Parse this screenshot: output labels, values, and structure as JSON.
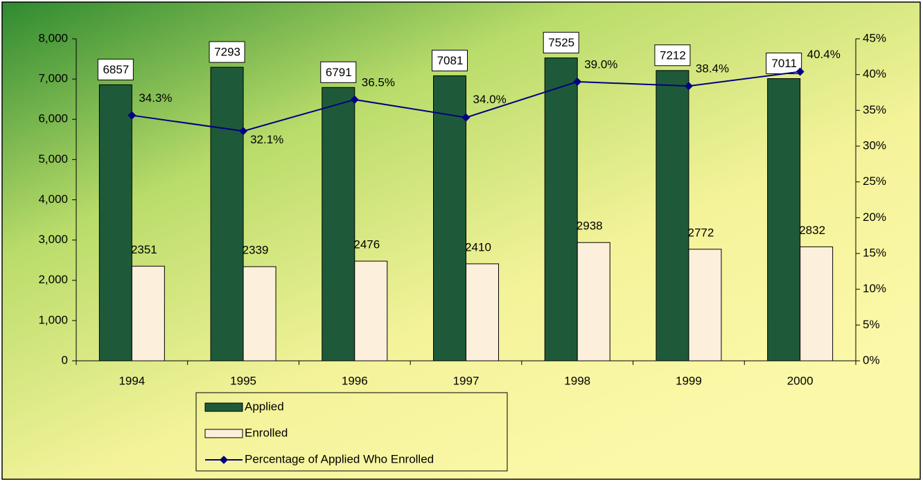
{
  "chart_data": {
    "type": "bar",
    "categories": [
      "1994",
      "1995",
      "1996",
      "1997",
      "1998",
      "1999",
      "2000"
    ],
    "series": [
      {
        "name": "Applied",
        "color": "#1e5a3a",
        "values": [
          6857,
          7293,
          6791,
          7081,
          7525,
          7212,
          7011
        ]
      },
      {
        "name": "Enrolled",
        "color": "#fcefdb",
        "values": [
          2351,
          2339,
          2476,
          2410,
          2938,
          2772,
          2832
        ]
      },
      {
        "name": "Percentage of Applied Who Enrolled",
        "color": "#000080",
        "type": "line",
        "axis": "y2",
        "values": [
          34.3,
          32.1,
          36.5,
          34.0,
          39.0,
          38.4,
          40.4
        ],
        "value_labels": [
          "34.3%",
          "32.1%",
          "36.5%",
          "34.0%",
          "39.0%",
          "38.4%",
          "40.4%"
        ]
      }
    ],
    "ylim": [
      0,
      8000
    ],
    "yticks": [
      0,
      {
        "value": 1000,
        "label": "1,000"
      },
      {
        "value": 2000,
        "label": "2,000"
      },
      {
        "value": 3000,
        "label": "3,000"
      },
      {
        "value": 4000,
        "label": "4,000"
      },
      {
        "value": 5000,
        "label": "5,000"
      },
      {
        "value": 6000,
        "label": "6,000"
      },
      {
        "value": 7000,
        "label": "7,000"
      },
      {
        "value": 8000,
        "label": "8,000"
      }
    ],
    "y2lim": [
      0,
      45
    ],
    "y2ticks": [
      {
        "value": 0,
        "label": "0%"
      },
      {
        "value": 5,
        "label": "5%"
      },
      {
        "value": 10,
        "label": "10%"
      },
      {
        "value": 15,
        "label": "15%"
      },
      {
        "value": 20,
        "label": "20%"
      },
      {
        "value": 25,
        "label": "25%"
      },
      {
        "value": 30,
        "label": "30%"
      },
      {
        "value": 35,
        "label": "35%"
      },
      {
        "value": 40,
        "label": "40%"
      },
      {
        "value": 45,
        "label": "45%"
      }
    ],
    "legend": "bottom"
  }
}
